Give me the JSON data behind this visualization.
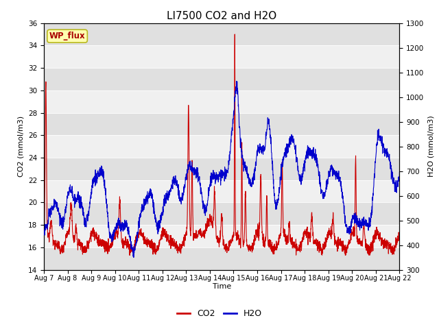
{
  "title": "LI7500 CO2 and H2O",
  "xlabel": "Time",
  "ylabel_left": "CO2 (mmol/m3)",
  "ylabel_right": "H2O (mmol/m3)",
  "ylim_left": [
    14,
    36
  ],
  "ylim_right": [
    300,
    1300
  ],
  "yticks_left": [
    14,
    16,
    18,
    20,
    22,
    24,
    26,
    28,
    30,
    32,
    34,
    36
  ],
  "yticks_right": [
    300,
    400,
    500,
    600,
    700,
    800,
    900,
    1000,
    1100,
    1200,
    1300
  ],
  "xtick_labels": [
    "Aug 7",
    "Aug 8",
    "Aug 9",
    "Aug 10",
    "Aug 11",
    "Aug 12",
    "Aug 13",
    "Aug 14",
    "Aug 15",
    "Aug 16",
    "Aug 17",
    "Aug 18",
    "Aug 19",
    "Aug 20",
    "Aug 21",
    "Aug 22"
  ],
  "site_label": "WP_flux",
  "co2_color": "#cc0000",
  "h2o_color": "#0000cc",
  "line_width": 0.8,
  "legend_co2": "CO2",
  "legend_h2o": "H2O",
  "bg_color": "#f0f0f0",
  "band_colors": [
    "#e0e0e0",
    "#f0f0f0"
  ],
  "title_fontsize": 11,
  "axis_fontsize": 8,
  "tick_fontsize": 7.5
}
